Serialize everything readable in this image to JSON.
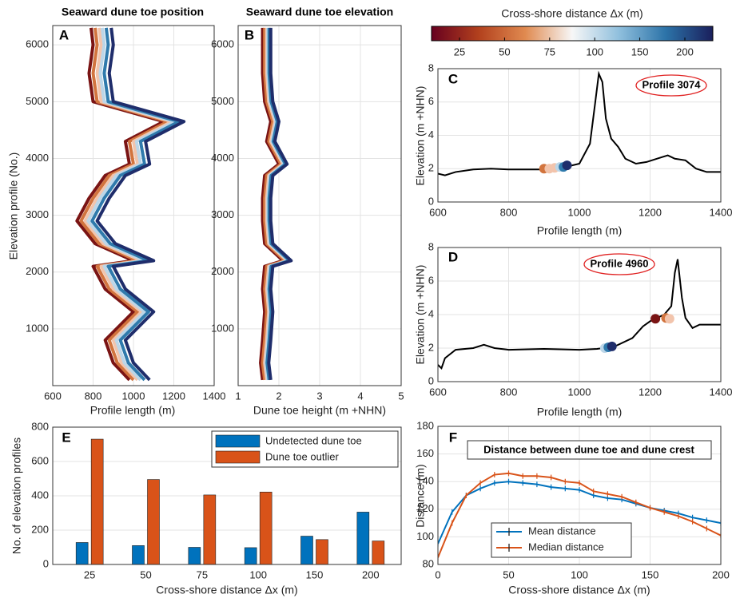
{
  "chart_data": [
    {
      "type": "vline",
      "label": "A",
      "title": "Seaward dune toe position",
      "xlabel": "Profile length (m)",
      "ylabel": "Elevation profile (No.)",
      "xlim": [
        600,
        1400
      ],
      "xticks": [
        600,
        800,
        1000,
        1200,
        1400
      ],
      "ylim": [
        0,
        6340
      ],
      "yticks": [
        1000,
        2000,
        3000,
        4000,
        5000,
        6000
      ],
      "grid": true,
      "y": [
        100,
        400,
        800,
        1300,
        1700,
        2100,
        2200,
        2500,
        2900,
        3300,
        3700,
        3900,
        4300,
        4650,
        5000,
        5500,
        6000,
        6300
      ],
      "series": [
        {
          "color": "#7a1414",
          "values": [
            980,
            900,
            860,
            1000,
            860,
            800,
            1000,
            810,
            720,
            780,
            860,
            980,
            960,
            1150,
            800,
            780,
            800,
            790
          ]
        },
        {
          "color": "#d2743e",
          "values": [
            1000,
            920,
            880,
            1020,
            880,
            820,
            1020,
            830,
            740,
            800,
            880,
            1000,
            980,
            1170,
            820,
            800,
            820,
            810
          ]
        },
        {
          "color": "#f2c4ac",
          "values": [
            1020,
            940,
            900,
            1040,
            900,
            840,
            1040,
            850,
            760,
            820,
            900,
            1020,
            1000,
            1190,
            840,
            820,
            840,
            830
          ]
        },
        {
          "color": "#bcd6e8",
          "values": [
            1035,
            955,
            915,
            1055,
            915,
            855,
            1055,
            865,
            775,
            835,
            915,
            1035,
            1015,
            1205,
            855,
            835,
            855,
            845
          ]
        },
        {
          "color": "#2f7aac",
          "values": [
            1055,
            975,
            935,
            1075,
            935,
            875,
            1075,
            885,
            795,
            855,
            935,
            1055,
            1035,
            1225,
            875,
            855,
            875,
            865
          ]
        },
        {
          "color": "#1f2d6b",
          "values": [
            1080,
            1000,
            960,
            1100,
            960,
            900,
            1100,
            910,
            820,
            880,
            960,
            1080,
            1060,
            1250,
            900,
            880,
            900,
            890
          ]
        }
      ]
    },
    {
      "type": "vline",
      "label": "B",
      "title": "Seaward dune toe elevation",
      "xlabel": "Dune toe height (m +NHN)",
      "xlim": [
        1,
        5
      ],
      "xticks": [
        1,
        2,
        3,
        4,
        5
      ],
      "ylim": [
        0,
        6340
      ],
      "yticks": [
        1000,
        2000,
        3000,
        4000,
        5000,
        6000
      ],
      "grid": true,
      "y": [
        100,
        400,
        800,
        1300,
        1700,
        2100,
        2200,
        2500,
        2900,
        3300,
        3700,
        3900,
        4300,
        4650,
        5000,
        5500,
        6000,
        6300
      ],
      "series": [
        {
          "color": "#7a1414",
          "values": [
            1.6,
            1.55,
            1.6,
            1.65,
            1.6,
            1.65,
            2.1,
            1.65,
            1.6,
            1.6,
            1.65,
            2.0,
            1.7,
            1.8,
            1.65,
            1.6,
            1.6,
            1.6
          ]
        },
        {
          "color": "#d2743e",
          "values": [
            1.65,
            1.6,
            1.65,
            1.7,
            1.65,
            1.7,
            2.15,
            1.7,
            1.65,
            1.65,
            1.7,
            2.05,
            1.75,
            1.85,
            1.7,
            1.65,
            1.65,
            1.65
          ]
        },
        {
          "color": "#f2c4ac",
          "values": [
            1.7,
            1.65,
            1.7,
            1.75,
            1.7,
            1.75,
            2.2,
            1.75,
            1.7,
            1.7,
            1.75,
            2.1,
            1.8,
            1.9,
            1.75,
            1.7,
            1.7,
            1.7
          ]
        },
        {
          "color": "#bcd6e8",
          "values": [
            1.73,
            1.68,
            1.73,
            1.78,
            1.73,
            1.78,
            2.23,
            1.78,
            1.73,
            1.73,
            1.78,
            2.13,
            1.83,
            1.93,
            1.78,
            1.73,
            1.73,
            1.73
          ]
        },
        {
          "color": "#2f7aac",
          "values": [
            1.76,
            1.71,
            1.76,
            1.81,
            1.76,
            1.81,
            2.26,
            1.81,
            1.76,
            1.76,
            1.81,
            2.16,
            1.86,
            1.96,
            1.81,
            1.76,
            1.76,
            1.76
          ]
        },
        {
          "color": "#1f2d6b",
          "values": [
            1.8,
            1.75,
            1.8,
            1.85,
            1.8,
            1.85,
            2.3,
            1.85,
            1.8,
            1.8,
            1.85,
            2.2,
            1.9,
            2.0,
            1.85,
            1.8,
            1.8,
            1.8
          ]
        }
      ]
    },
    {
      "type": "colorbar",
      "title": "Cross-shore distance Δx (m)",
      "ticks": [
        25,
        50,
        75,
        100,
        150,
        200
      ],
      "colors": [
        "#67001f",
        "#b2401d",
        "#e08a50",
        "#f7f7f7",
        "#8fbfdd",
        "#2c73a8",
        "#1a1f5c"
      ]
    },
    {
      "type": "line",
      "label": "C",
      "annotation": "Profile 3074",
      "xlabel": "Profile length (m)",
      "ylabel": "Elevation (m +NHN)",
      "xlim": [
        600,
        1400
      ],
      "xticks": [
        600,
        800,
        1000,
        1200,
        1400
      ],
      "ylim": [
        0,
        8
      ],
      "yticks": [
        0,
        2,
        4,
        6,
        8
      ],
      "grid": true,
      "color": "#000000",
      "x": [
        600,
        620,
        650,
        700,
        750,
        800,
        850,
        900,
        950,
        1000,
        1030,
        1045,
        1055,
        1065,
        1075,
        1090,
        1110,
        1130,
        1160,
        1190,
        1220,
        1250,
        1270,
        1300,
        1330,
        1360,
        1400
      ],
      "values": [
        1.7,
        1.6,
        1.8,
        1.95,
        2.0,
        1.95,
        1.95,
        1.95,
        2.05,
        2.3,
        3.5,
        6,
        7.7,
        7.2,
        5,
        3.8,
        3.3,
        2.6,
        2.3,
        2.4,
        2.6,
        2.8,
        2.6,
        2.5,
        2.0,
        1.8,
        1.8
      ],
      "markers": {
        "x": [
          900,
          915,
          930,
          945,
          955,
          965
        ],
        "values": [
          2.0,
          2.0,
          2.05,
          2.1,
          2.1,
          2.2
        ],
        "colors": [
          "#d2743e",
          "#f2c4ac",
          "#f2c4ac",
          "#bcd6e8",
          "#2f7aac",
          "#1f2d6b"
        ]
      }
    },
    {
      "type": "line",
      "label": "D",
      "annotation": "Profile 4960",
      "xlabel": "Profile length (m)",
      "ylabel": "Elevation (m +NHN)",
      "xlim": [
        600,
        1400
      ],
      "xticks": [
        600,
        800,
        1000,
        1200,
        1400
      ],
      "ylim": [
        0,
        8
      ],
      "yticks": [
        0,
        2,
        4,
        6,
        8
      ],
      "grid": true,
      "color": "#000000",
      "x": [
        600,
        610,
        620,
        650,
        700,
        730,
        760,
        800,
        900,
        1000,
        1050,
        1100,
        1150,
        1180,
        1200,
        1220,
        1240,
        1260,
        1270,
        1278,
        1290,
        1300,
        1320,
        1340,
        1370,
        1400
      ],
      "values": [
        1.0,
        0.8,
        1.4,
        1.9,
        2.0,
        2.2,
        2.0,
        1.9,
        1.95,
        1.9,
        1.95,
        2.1,
        2.6,
        3.3,
        3.6,
        3.8,
        4.0,
        4.5,
        6.5,
        7.3,
        5,
        3.8,
        3.2,
        3.4,
        3.4,
        3.4
      ],
      "markers": {
        "x": [
          1215,
          1245,
          1255,
          1072,
          1082,
          1092
        ],
        "values": [
          3.75,
          3.8,
          3.75,
          2.0,
          2.05,
          2.1
        ],
        "colors": [
          "#7a1414",
          "#d2743e",
          "#f2c4ac",
          "#bcd6e8",
          "#2f7aac",
          "#1f2d6b"
        ]
      }
    },
    {
      "type": "bar",
      "label": "E",
      "xlabel": "Cross-shore distance Δx (m)",
      "ylabel": "No. of elevation profiles",
      "categories": [
        "25",
        "50",
        "75",
        "100",
        "150",
        "200"
      ],
      "ylim": [
        0,
        800
      ],
      "yticks": [
        0,
        200,
        400,
        600,
        800
      ],
      "grid": true,
      "legend": "top-right",
      "series": [
        {
          "name": "Undetected dune toe",
          "color": "#0072bd",
          "values": [
            128,
            110,
            100,
            98,
            165,
            305
          ]
        },
        {
          "name": "Dune toe outlier",
          "color": "#d95319",
          "values": [
            730,
            495,
            405,
            422,
            145,
            137
          ]
        }
      ]
    },
    {
      "type": "errorline",
      "label": "F",
      "title": "Distance between dune toe and dune crest",
      "xlabel": "Cross-shore distance Δx (m)",
      "ylabel": "Distance (m)",
      "xlim": [
        0,
        200
      ],
      "xticks": [
        0,
        50,
        100,
        150,
        200
      ],
      "ylim": [
        80,
        180
      ],
      "yticks": [
        80,
        100,
        120,
        140,
        160,
        180
      ],
      "grid": true,
      "legend": "bottom-left",
      "x": [
        0,
        10,
        20,
        30,
        40,
        50,
        60,
        70,
        80,
        90,
        100,
        110,
        120,
        130,
        140,
        150,
        160,
        170,
        180,
        190,
        200
      ],
      "series": [
        {
          "name": "Mean distance",
          "color": "#0072bd",
          "error": 2,
          "values": [
            95,
            118,
            130,
            135,
            139,
            140,
            139,
            138,
            136,
            135,
            134,
            130,
            128,
            127,
            124,
            121,
            119,
            117,
            114,
            112,
            110
          ]
        },
        {
          "name": "Median distance",
          "color": "#d95319",
          "error": 2,
          "values": [
            85,
            110,
            130,
            139,
            145,
            146,
            144,
            144,
            143,
            140,
            139,
            133,
            131,
            129,
            125,
            121,
            118,
            115,
            111,
            106,
            101
          ]
        }
      ]
    }
  ]
}
